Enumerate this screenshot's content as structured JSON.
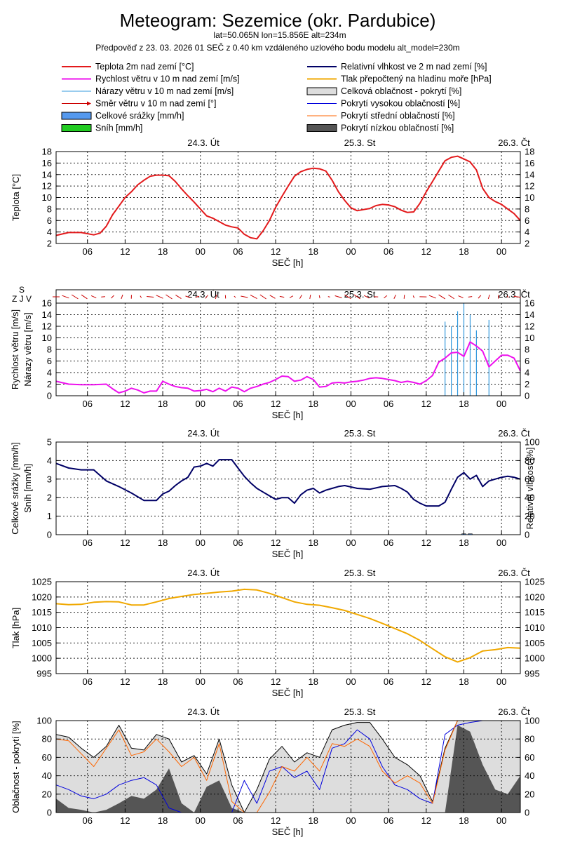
{
  "header": {
    "title": "Meteogram: Sezemice (okr. Pardubice)",
    "coords": "lat=50.065N lon=15.856E alt=234m",
    "forecast": "Předpověď z 23. 03. 2026 01 SEČ z 0.40 km vzdáleného uzlového bodu modelu alt_model=230m"
  },
  "legend": [
    {
      "label": "Teplota 2m nad zemí [°C]",
      "color": "#e31a1c",
      "kind": "line"
    },
    {
      "label": "Relativní vlhkost ve 2 m nad zemí [%]",
      "color": "#000066",
      "kind": "line"
    },
    {
      "label": "Rychlost větru v 10 m nad zemí [m/s]",
      "color": "#ee11ee",
      "kind": "line"
    },
    {
      "label": "Tlak přepočtený na hladinu moře [hPa]",
      "color": "#f0a800",
      "kind": "line"
    },
    {
      "label": "Nárazy větru v 10 m nad zemí [m/s]",
      "color": "#3399dd",
      "kind": "thin"
    },
    {
      "label": "Celková oblačnost - pokrytí [%]",
      "color": "#dddddd",
      "kind": "box"
    },
    {
      "label": "Směr větru v 10 m nad zemí [°]",
      "color": "#cc0000",
      "kind": "arrow"
    },
    {
      "label": "Pokrytí vysokou oblačností [%]",
      "color": "#0000dd",
      "kind": "thin"
    },
    {
      "label": "Celkové srážky [mm/h]",
      "color": "#5599ee",
      "kind": "box"
    },
    {
      "label": "Pokrytí střední oblačností [%]",
      "color": "#ff6600",
      "kind": "thin"
    },
    {
      "label": "Sníh [mm/h]",
      "color": "#22cc22",
      "kind": "box"
    },
    {
      "label": "Pokrytí nízkou oblačností [%]",
      "color": "#555555",
      "kind": "box"
    }
  ],
  "days": [
    "24.3. Út",
    "25.3. St",
    "26.3. Čt"
  ],
  "xtick_labels": [
    "06",
    "12",
    "18",
    "00",
    "06",
    "12",
    "18",
    "00",
    "06",
    "12",
    "18",
    "00"
  ],
  "xlabel": "SEČ [h]",
  "wind_dir_label": "S",
  "wind_dir_side": "Z  J  V",
  "chart_data": [
    {
      "type": "line",
      "name": "temperature",
      "ylabel": "Teplota [°C]",
      "ylim": [
        2,
        18
      ],
      "yticks": [
        2,
        4,
        6,
        8,
        10,
        12,
        14,
        16,
        18
      ],
      "x_hours_from_start": [
        0,
        2,
        4,
        6,
        7,
        8,
        9,
        10,
        11,
        12,
        13,
        14,
        15,
        16,
        17,
        18,
        19,
        20,
        21,
        22,
        23,
        24,
        25,
        26,
        27,
        28,
        29,
        30,
        31,
        32,
        33,
        34,
        35,
        36,
        37,
        38,
        39,
        40,
        41,
        42,
        43,
        44,
        45,
        46,
        47,
        48,
        49,
        50,
        51,
        52,
        53,
        54,
        55,
        56,
        57,
        58,
        59,
        60,
        61,
        62,
        63,
        64,
        65,
        66,
        67,
        68,
        69,
        70,
        71,
        72,
        73,
        74
      ],
      "series": [
        {
          "name": "Teplota 2m nad zemí [°C]",
          "color": "#e31a1c",
          "values": [
            3.4,
            3.9,
            3.9,
            3.5,
            3.8,
            5.0,
            7.0,
            8.5,
            10.0,
            11.0,
            12.2,
            13.0,
            13.7,
            13.9,
            13.9,
            13.8,
            12.8,
            11.5,
            10.3,
            9.2,
            8.0,
            6.8,
            6.4,
            5.8,
            5.2,
            4.9,
            4.7,
            3.6,
            3.0,
            2.8,
            4.2,
            6.0,
            8.3,
            10.2,
            12.0,
            13.7,
            14.5,
            14.9,
            15.1,
            15.0,
            14.6,
            13.0,
            11.0,
            9.5,
            8.2,
            7.7,
            7.9,
            8.1,
            8.6,
            8.8,
            8.7,
            8.4,
            7.8,
            7.4,
            7.5,
            9.0,
            11.0,
            12.8,
            14.6,
            16.4,
            17.0,
            17.2,
            16.7,
            16.2,
            14.8,
            11.6,
            10.0,
            9.3,
            8.8,
            8.0,
            7.2,
            6.0
          ]
        }
      ]
    },
    {
      "type": "line+bar",
      "name": "wind",
      "ylabel": "Rychlost větru [m/s]",
      "ylabel2": "Nárazy větru [m/s]",
      "ylim": [
        0,
        16
      ],
      "yticks": [
        0,
        2,
        4,
        6,
        8,
        10,
        12,
        14,
        16
      ],
      "x_hours_from_start": [
        0,
        2,
        4,
        6,
        8,
        9,
        10,
        11,
        12,
        13,
        14,
        15,
        16,
        17,
        18,
        19,
        20,
        21,
        22,
        23,
        24,
        25,
        26,
        27,
        28,
        29,
        30,
        31,
        32,
        33,
        34,
        35,
        36,
        37,
        38,
        39,
        40,
        41,
        42,
        43,
        44,
        45,
        46,
        47,
        48,
        49,
        50,
        51,
        52,
        53,
        54,
        55,
        56,
        57,
        58,
        59,
        60,
        61,
        62,
        63,
        64,
        65,
        66,
        67,
        68,
        69,
        70,
        71,
        72,
        73,
        74
      ],
      "series": [
        {
          "name": "Rychlost větru v 10 m nad zemí [m/s]",
          "color": "#ee11ee",
          "values": [
            2.5,
            2.0,
            1.9,
            1.9,
            2.0,
            1.2,
            0.5,
            0.8,
            1.3,
            1.0,
            0.5,
            0.8,
            0.8,
            2.5,
            2.0,
            1.6,
            1.4,
            1.3,
            0.8,
            0.9,
            1.1,
            0.7,
            1.3,
            0.8,
            1.5,
            1.3,
            0.7,
            1.3,
            1.6,
            2.0,
            2.3,
            2.8,
            3.4,
            3.3,
            2.5,
            2.7,
            3.3,
            2.8,
            1.5,
            1.6,
            2.2,
            2.3,
            2.2,
            2.4,
            2.5,
            2.7,
            3.0,
            3.1,
            3.0,
            2.8,
            2.6,
            2.3,
            2.5,
            2.3,
            2.0,
            2.6,
            3.5,
            5.8,
            6.5,
            7.4,
            7.5,
            6.8,
            9.3,
            8.6,
            7.7,
            5.0,
            6.0,
            7.0,
            7.0,
            6.5,
            4.3
          ]
        }
      ],
      "gusts_x_hours": [
        62,
        63,
        64,
        65,
        66,
        67,
        69
      ],
      "gusts_values": [
        12.8,
        12.0,
        14.6,
        16.0,
        14.0,
        11.3,
        13.1
      ],
      "gusts_color": "#3399dd"
    },
    {
      "type": "line",
      "name": "precipitation_humidity",
      "ylabel": "Celkové srážky [mm/h]",
      "ylabel2": "Sníh [mm/h]",
      "ylabel_right": "Relativní vlhkost [%]",
      "ylim": [
        0,
        5
      ],
      "yticks": [
        0,
        1,
        2,
        3,
        4,
        5
      ],
      "ylim_right": [
        0,
        100
      ],
      "yticks_right": [
        0,
        20,
        40,
        60,
        80,
        100
      ],
      "x_hours_from_start": [
        0,
        2,
        4,
        6,
        7,
        8,
        10,
        12,
        14,
        16,
        17,
        18,
        19,
        20,
        21,
        22,
        23,
        24,
        25,
        26,
        27,
        28,
        29,
        30,
        31,
        32,
        33,
        34,
        35,
        36,
        37,
        38,
        39,
        40,
        41,
        42,
        43,
        44,
        45,
        46,
        48,
        50,
        52,
        54,
        55,
        56,
        57,
        58,
        59,
        60,
        61,
        62,
        63,
        64,
        65,
        66,
        67,
        68,
        69,
        70,
        71,
        72,
        73,
        74
      ],
      "series": [
        {
          "name": "Relativní vlhkost ve 2 m nad zemí [%]",
          "color": "#000066",
          "axis": "right",
          "values": [
            77,
            72,
            70,
            70,
            64,
            58,
            52,
            45,
            37,
            37,
            44,
            47,
            53,
            58,
            62,
            73,
            74,
            77,
            74,
            81,
            81,
            81,
            72,
            63,
            56,
            50,
            46,
            42,
            38,
            40,
            40,
            34,
            43,
            48,
            50,
            45,
            48,
            50,
            52,
            53,
            50,
            49,
            52,
            53,
            50,
            46,
            38,
            34,
            31,
            31,
            31,
            35,
            49,
            62,
            67,
            60,
            64,
            52,
            58,
            60,
            62,
            63,
            62,
            60
          ]
        },
        {
          "name": "Celkové srážky [mm/h]",
          "color": "#5599ee",
          "axis": "left",
          "x": [
            65,
            66
          ],
          "values": [
            0.05,
            0.05
          ]
        },
        {
          "name": "Sníh [mm/h]",
          "color": "#22cc22",
          "axis": "left",
          "x": [],
          "values": []
        }
      ]
    },
    {
      "type": "line",
      "name": "pressure",
      "ylabel": "Tlak [hPa]",
      "ylim": [
        995,
        1025
      ],
      "yticks": [
        995,
        1000,
        1005,
        1010,
        1015,
        1020,
        1025
      ],
      "x_hours_from_start": [
        0,
        2,
        4,
        6,
        8,
        10,
        12,
        14,
        16,
        18,
        20,
        22,
        24,
        26,
        28,
        30,
        32,
        34,
        36,
        38,
        40,
        42,
        44,
        46,
        48,
        50,
        52,
        54,
        56,
        58,
        60,
        62,
        64,
        66,
        68,
        70,
        72,
        74
      ],
      "series": [
        {
          "name": "Tlak přepočtený na hladinu moře [hPa]",
          "color": "#f0a800",
          "values": [
            1017.8,
            1017.5,
            1017.6,
            1018.3,
            1018.5,
            1018.4,
            1017.4,
            1017.4,
            1018.4,
            1019.5,
            1020.2,
            1020.8,
            1021.2,
            1021.6,
            1021.9,
            1022.5,
            1022.3,
            1021.2,
            1019.8,
            1018.4,
            1017.6,
            1017.3,
            1016.5,
            1015.6,
            1014.3,
            1013.0,
            1011.4,
            1009.7,
            1008.0,
            1005.8,
            1003.1,
            1000.5,
            998.8,
            1000.2,
            1002.4,
            1002.8,
            1003.5,
            1003.3
          ]
        }
      ]
    },
    {
      "type": "area",
      "name": "cloudiness",
      "ylabel": "Oblačnost - pokrytí [%]",
      "ylim": [
        0,
        100
      ],
      "yticks": [
        0,
        20,
        40,
        60,
        80,
        100
      ],
      "x_hours_from_start": [
        0,
        2,
        4,
        6,
        8,
        10,
        12,
        14,
        16,
        18,
        20,
        22,
        24,
        26,
        28,
        30,
        32,
        34,
        36,
        38,
        40,
        42,
        44,
        46,
        48,
        50,
        52,
        54,
        56,
        58,
        60,
        62,
        64,
        66,
        68,
        70,
        72,
        74
      ],
      "series": [
        {
          "name": "Celková oblačnost - pokrytí [%]",
          "color": "#dddddd",
          "values": [
            85,
            82,
            70,
            60,
            72,
            95,
            70,
            68,
            85,
            80,
            55,
            62,
            42,
            80,
            30,
            0,
            25,
            58,
            72,
            55,
            65,
            60,
            90,
            95,
            98,
            98,
            80,
            60,
            52,
            40,
            12,
            70,
            100,
            100,
            100,
            100,
            100,
            100
          ]
        },
        {
          "name": "Pokrytí vysokou oblačností [%]",
          "color": "#0000dd",
          "values": [
            30,
            25,
            18,
            15,
            20,
            30,
            35,
            38,
            30,
            5,
            0,
            0,
            0,
            0,
            0,
            35,
            10,
            45,
            50,
            38,
            45,
            25,
            70,
            75,
            90,
            80,
            50,
            30,
            25,
            15,
            10,
            85,
            95,
            98,
            100,
            100,
            100,
            100
          ]
        },
        {
          "name": "Pokrytí střední oblačností [%]",
          "color": "#ff6600",
          "values": [
            80,
            78,
            64,
            50,
            70,
            90,
            62,
            66,
            80,
            66,
            50,
            60,
            35,
            75,
            12,
            0,
            0,
            22,
            50,
            45,
            60,
            45,
            75,
            72,
            80,
            72,
            45,
            32,
            40,
            32,
            10,
            68,
            100,
            100,
            100,
            100,
            100,
            100
          ]
        },
        {
          "name": "Pokrytí nízkou oblačností [%]",
          "color": "#555555",
          "values": [
            15,
            5,
            3,
            0,
            3,
            10,
            18,
            15,
            25,
            48,
            10,
            0,
            28,
            35,
            5,
            0,
            0,
            0,
            0,
            0,
            0,
            0,
            0,
            0,
            0,
            0,
            0,
            0,
            0,
            0,
            0,
            0,
            95,
            88,
            52,
            25,
            20,
            40
          ]
        }
      ]
    }
  ]
}
